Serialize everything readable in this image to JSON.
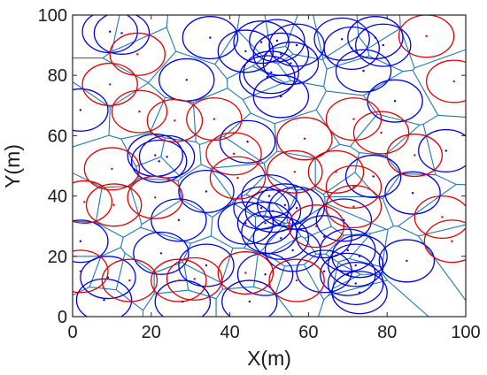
{
  "chart_data": {
    "type": "scatter",
    "xlabel": "X(m)",
    "ylabel": "Y(m)",
    "xlim": [
      0,
      100
    ],
    "ylim": [
      0,
      100
    ],
    "xticks": [
      0,
      20,
      40,
      60,
      80,
      100
    ],
    "yticks": [
      0,
      20,
      40,
      60,
      80,
      100
    ],
    "grid": false,
    "coverage_radius": 7,
    "colors": {
      "blue": "#0000e0",
      "red": "#e00000",
      "edges": "#1f77b4",
      "axes": "#262626"
    },
    "series": [
      {
        "color": "blue",
        "points": [
          [
            9.5,
            94.5
          ],
          [
            12.5,
            94
          ],
          [
            35,
            92.5
          ],
          [
            44,
            88
          ],
          [
            48,
            91
          ],
          [
            52,
            91.5
          ],
          [
            57,
            90
          ],
          [
            53,
            87
          ],
          [
            55.5,
            84
          ],
          [
            68.5,
            92
          ],
          [
            71,
            89
          ],
          [
            77,
            92.5
          ],
          [
            79,
            90
          ],
          [
            74,
            81.5
          ],
          [
            50.5,
            81
          ],
          [
            49.5,
            79.5
          ],
          [
            53,
            73
          ],
          [
            29,
            78.5
          ],
          [
            2,
            68.5
          ],
          [
            82,
            71.5
          ],
          [
            95,
            55
          ],
          [
            86.5,
            41
          ],
          [
            69,
            32
          ],
          [
            76.5,
            46.5
          ],
          [
            44.5,
            58
          ],
          [
            21,
            53.5
          ],
          [
            22,
            51.5
          ],
          [
            24,
            53
          ],
          [
            22.5,
            21
          ],
          [
            27,
            32
          ],
          [
            34,
            41.5
          ],
          [
            44,
            31
          ],
          [
            48,
            36
          ],
          [
            50,
            40
          ],
          [
            51,
            35
          ],
          [
            54,
            37
          ],
          [
            57,
            36
          ],
          [
            49,
            31
          ],
          [
            50,
            28
          ],
          [
            53,
            26
          ],
          [
            56,
            22
          ],
          [
            49,
            14
          ],
          [
            64,
            26.5
          ],
          [
            64,
            15
          ],
          [
            70,
            22
          ],
          [
            73,
            20
          ],
          [
            72,
            17
          ],
          [
            70,
            14
          ],
          [
            72,
            11
          ],
          [
            73,
            8
          ],
          [
            85,
            18.5
          ],
          [
            34,
            17
          ],
          [
            28,
            5
          ],
          [
            45,
            5
          ],
          [
            8,
            5.5
          ],
          [
            9,
            13
          ],
          [
            2,
            25
          ]
        ]
      },
      {
        "color": "red",
        "points": [
          [
            90,
            93
          ],
          [
            97,
            78
          ],
          [
            9.5,
            77
          ],
          [
            16.5,
            87
          ],
          [
            17,
            68
          ],
          [
            26,
            65
          ],
          [
            36,
            65.5
          ],
          [
            41,
            54
          ],
          [
            42,
            46
          ],
          [
            56.5,
            48
          ],
          [
            59,
            59
          ],
          [
            67,
            48
          ],
          [
            71.5,
            43
          ],
          [
            71.5,
            65.5
          ],
          [
            78.5,
            61
          ],
          [
            87,
            53.5
          ],
          [
            10,
            49
          ],
          [
            3,
            38
          ],
          [
            10.5,
            37
          ],
          [
            21,
            39.5
          ],
          [
            94,
            33
          ],
          [
            96.5,
            25
          ],
          [
            62,
            30
          ],
          [
            57,
            12
          ],
          [
            44,
            14.5
          ],
          [
            31,
            12.5
          ],
          [
            27,
            12
          ],
          [
            14.5,
            12
          ],
          [
            2,
            15
          ],
          [
            71.5,
            36.5
          ]
        ]
      }
    ]
  }
}
